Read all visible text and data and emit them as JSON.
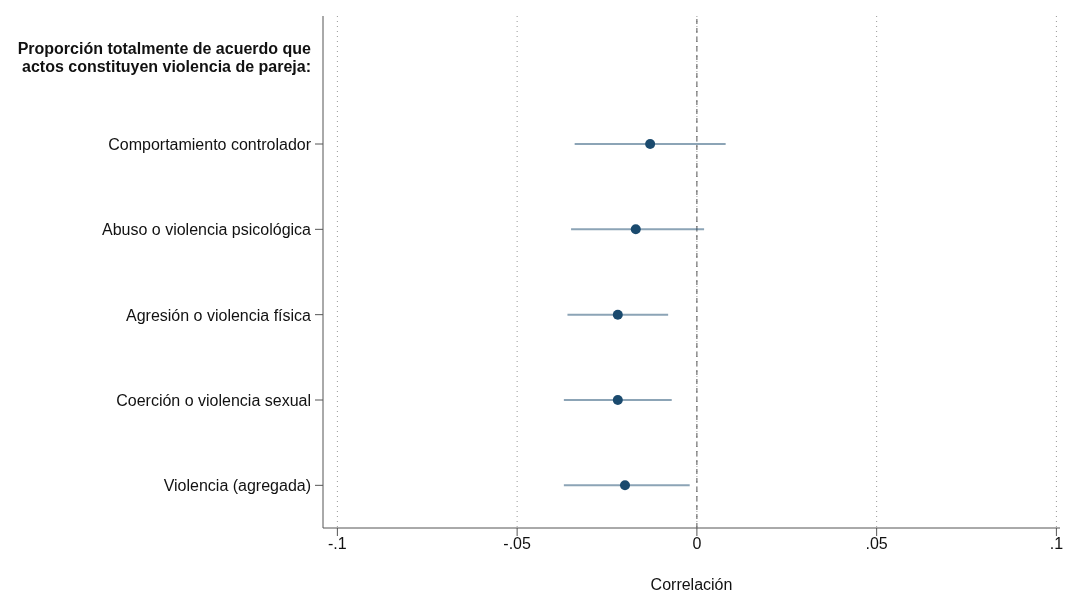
{
  "chart_data": {
    "type": "scatter",
    "orientation": "horizontal",
    "title": "Proporción totalmente de acuerdo que actos constituyen violencia de pareja:",
    "xlabel": "Correlación",
    "categories": [
      "Comportamiento controlador",
      "Abuso o violencia psicológica",
      "Agresión o violencia física",
      "Coerción o violencia sexual",
      "Violencia (agregada)"
    ],
    "series": [
      {
        "color": "#1a4a6e",
        "values": [
          -0.013,
          -0.017,
          -0.022,
          -0.022,
          -0.02
        ],
        "errors": [
          [
            -0.034,
            0.008
          ],
          [
            -0.035,
            0.002
          ],
          [
            -0.036,
            -0.008
          ],
          [
            -0.037,
            -0.007
          ],
          [
            -0.037,
            -0.002
          ]
        ]
      }
    ],
    "xlim": [
      -0.104,
      0.101
    ],
    "xticks": [
      {
        "value": -0.1,
        "label": "-.1"
      },
      {
        "value": -0.05,
        "label": "-.05"
      },
      0,
      {
        "value": 0.05,
        "label": ".05"
      },
      {
        "value": 0.1,
        "label": ".1"
      }
    ],
    "grid": "x",
    "marker": "circle",
    "ref_lines": [
      {
        "axis": "x",
        "value": 0,
        "line_style": "dashed",
        "color": "#555555"
      }
    ]
  }
}
